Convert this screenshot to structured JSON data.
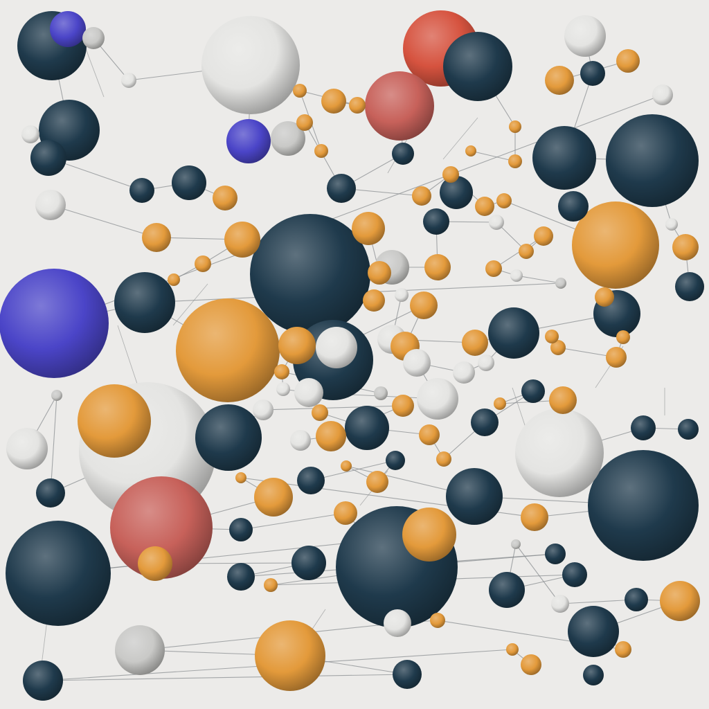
{
  "palette": {
    "background": "#ecebe9",
    "navy": "#1f3a4c",
    "orange": "#e39a3b",
    "white": "#e4e4e2",
    "grey": "#c9c9c7",
    "violet": "#4b45c8",
    "red": "#d6533f",
    "salmon": "#c7615a",
    "link": "#8a8d90"
  },
  "sphere_kinds": [
    "navy",
    "orange",
    "white",
    "grey",
    "violet",
    "red",
    "salmon"
  ]
}
